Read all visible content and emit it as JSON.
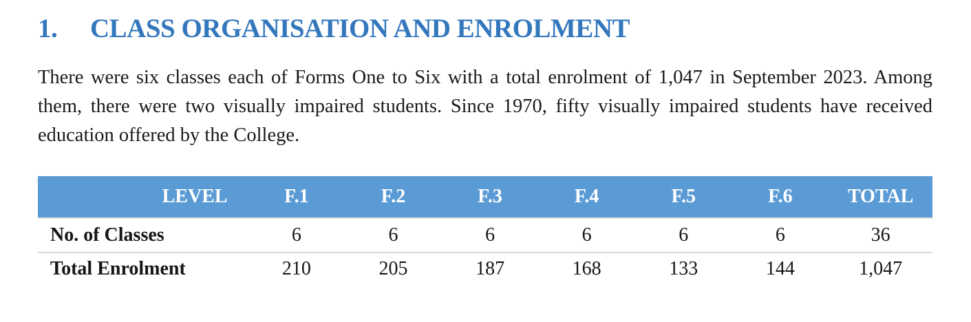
{
  "heading": {
    "number": "1.",
    "title": "CLASS ORGANISATION AND ENROLMENT",
    "color": "#3377BD"
  },
  "paragraph": {
    "text": "There were six classes each of Forms One to Six with a total enrolment of 1,047 in September 2023.  Among them, there were two visually impaired students.  Since 1970, fifty visually impaired students have received education offered by the College."
  },
  "table": {
    "header_bg": "#5B9BD5",
    "header_text_color": "#FFFFFF",
    "divider_color": "#D9D9D9",
    "columns": [
      "LEVEL",
      "F.1",
      "F.2",
      "F.3",
      "F.4",
      "F.5",
      "F.6",
      "TOTAL"
    ],
    "rows": [
      {
        "label": "No. of Classes",
        "values": [
          "6",
          "6",
          "6",
          "6",
          "6",
          "6",
          "36"
        ]
      },
      {
        "label": "Total Enrolment",
        "values": [
          "210",
          "205",
          "187",
          "168",
          "133",
          "144",
          "1,047"
        ]
      }
    ]
  }
}
